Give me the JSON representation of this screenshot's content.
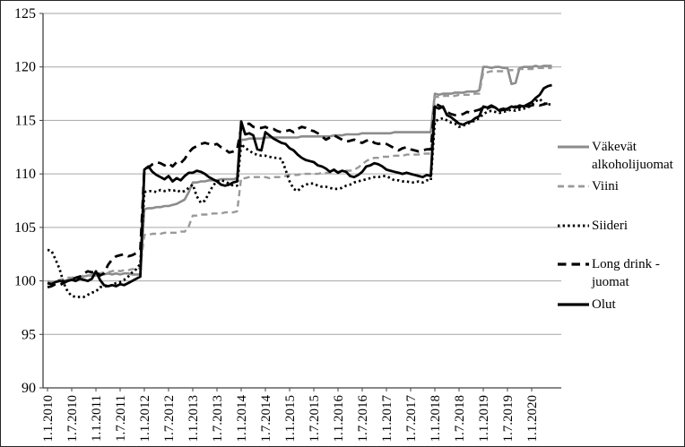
{
  "figure": {
    "background": "#ffffff",
    "border_color": "#262626"
  },
  "chart_data": {
    "type": "line",
    "title": "",
    "xlabel": "",
    "ylabel": "",
    "grid": true,
    "legend_position": "right",
    "ylim": [
      90,
      125
    ],
    "y_ticks": [
      90,
      95,
      100,
      105,
      110,
      115,
      120,
      125
    ],
    "x_start_month": "1.1.2010",
    "x_frequency": "monthly",
    "x_tick_every_months": 6,
    "x_tick_labels": [
      "1.1.2010",
      "1.7.2010",
      "1.1.2011",
      "1.7.2011",
      "1.1.2012",
      "1.7.2012",
      "1.1.2013",
      "1.7.2013",
      "1.1.2014",
      "1.7.2014",
      "1.1.2015",
      "1.7.2015",
      "1.1.2016",
      "1.7.2016",
      "1.1.2017",
      "1.7.2017",
      "1.1.2018",
      "1.7.2018",
      "1.1.2019",
      "1.7.2019",
      "1.1.2020"
    ],
    "axis_color": "#404040",
    "gridline_color": "#a6a6a6",
    "series": [
      {
        "key": "vakevat",
        "name": "Väkevät alkoholijuomat",
        "label_lines": [
          "Väkevät",
          "alkoholijuomat"
        ],
        "color": "#8c8c8c",
        "style": "solid",
        "width": 2.6,
        "values": [
          99.7,
          99.8,
          99.9,
          100,
          100,
          100.1,
          100.2,
          100.3,
          100.3,
          100.4,
          100.5,
          100.5,
          100.5,
          100.6,
          100.6,
          100.7,
          100.6,
          100.7,
          100.6,
          100.7,
          100.7,
          100.6,
          100.6,
          100.6,
          106.7,
          106.8,
          106.8,
          106.9,
          106.9,
          107,
          107,
          107.1,
          107.2,
          107.4,
          107.6,
          108.3,
          109.2,
          109.2,
          109.3,
          109.3,
          109.4,
          109.4,
          109.4,
          109.5,
          109.5,
          109.5,
          109.5,
          109.6,
          113.2,
          113.2,
          113.3,
          113.3,
          113.3,
          113.3,
          113.4,
          113.4,
          113.4,
          113.4,
          113.4,
          113.4,
          113.4,
          113.4,
          113.4,
          113.5,
          113.5,
          113.5,
          113.5,
          113.5,
          113.5,
          113.5,
          113.5,
          113.6,
          113.6,
          113.6,
          113.7,
          113.7,
          113.7,
          113.7,
          113.8,
          113.8,
          113.8,
          113.8,
          113.8,
          113.8,
          113.8,
          113.8,
          113.9,
          113.9,
          113.9,
          113.9,
          113.9,
          113.9,
          113.9,
          113.9,
          113.9,
          113.9,
          117.5,
          117.4,
          117.5,
          117.5,
          117.5,
          117.6,
          117.6,
          117.6,
          117.7,
          117.7,
          117.7,
          117.8,
          120,
          120,
          119.9,
          120,
          120,
          119.9,
          119.9,
          118.4,
          118.5,
          119.9,
          120,
          120,
          120,
          120.1,
          120,
          120.1,
          120.1,
          120.1
        ]
      },
      {
        "key": "viini",
        "name": "Viini",
        "label_lines": [
          "Viini"
        ],
        "color": "#999999",
        "style": "dash",
        "width": 2.4,
        "values": [
          100,
          99.9,
          100,
          100.1,
          100.2,
          100.3,
          100.3,
          100.4,
          100.4,
          100.5,
          100.5,
          100.6,
          100.7,
          100.7,
          100.8,
          100.8,
          100.9,
          101,
          100.9,
          101,
          101,
          101.1,
          101.1,
          101.2,
          104.3,
          104.3,
          104.4,
          104.4,
          104.4,
          104.5,
          104.5,
          104.5,
          104.5,
          104.6,
          104.6,
          105.1,
          106.1,
          106.1,
          106.2,
          106.2,
          106.2,
          106.3,
          106.3,
          106.3,
          106.4,
          106.4,
          106.4,
          106.5,
          109.6,
          109.6,
          109.7,
          109.7,
          109.7,
          109.7,
          109.7,
          109.6,
          109.7,
          109.7,
          109.7,
          109.8,
          109.9,
          109.9,
          109.9,
          110,
          110,
          110,
          110,
          110,
          110.1,
          110.1,
          110.1,
          110.2,
          110.2,
          110.3,
          110.3,
          110.3,
          110.4,
          110.6,
          110.9,
          111.2,
          111.4,
          111.5,
          111.5,
          111.6,
          111.6,
          111.6,
          111.7,
          111.7,
          111.7,
          111.8,
          111.8,
          111.8,
          111.8,
          111.9,
          111.9,
          111.9,
          117.2,
          117.2,
          117.3,
          117.3,
          117.3,
          117.3,
          117.4,
          117.4,
          117.4,
          117.4,
          117.5,
          117.5,
          119.5,
          119.5,
          119.6,
          119.6,
          119.6,
          119.6,
          119.7,
          119.7,
          119.7,
          119.8,
          119.8,
          119.8,
          119.8,
          119.9,
          119.9,
          119.9,
          119.9,
          119.9
        ]
      },
      {
        "key": "siideri",
        "name": "Siideri",
        "label_lines": [
          "Siideri"
        ],
        "color": "#000000",
        "style": "dot",
        "width": 2.7,
        "values": [
          102.9,
          102.8,
          102,
          101.1,
          99.8,
          99,
          98.6,
          98.5,
          98.5,
          98.5,
          98.7,
          98.9,
          99,
          99.4,
          99.5,
          99.5,
          99.6,
          99.8,
          99.9,
          100.1,
          100.4,
          100.8,
          101.1,
          101.6,
          108.3,
          108.4,
          108.4,
          108.3,
          108.5,
          108.4,
          108.5,
          108.4,
          108.5,
          108.3,
          108.4,
          108.7,
          109,
          107.9,
          107.3,
          107.5,
          108.2,
          108.9,
          109.3,
          109.4,
          109.3,
          109.1,
          108.9,
          108.9,
          112.8,
          112.4,
          112.2,
          111.9,
          111.8,
          111.7,
          111.7,
          111.6,
          111.5,
          111.5,
          111.4,
          110.4,
          109.3,
          108.6,
          108.4,
          108.8,
          109,
          109.1,
          109.1,
          108.9,
          108.8,
          108.8,
          108.7,
          108.6,
          108.6,
          108.7,
          108.9,
          109,
          109.2,
          109.3,
          109.4,
          109.5,
          109.6,
          109.7,
          109.7,
          109.8,
          109.8,
          109.6,
          109.4,
          109.4,
          109.3,
          109.3,
          109.2,
          109.2,
          109.3,
          109.2,
          109.4,
          109.4,
          114.9,
          115.1,
          115.2,
          115,
          114.8,
          114.7,
          114.4,
          114.5,
          114.7,
          114.8,
          115,
          115.2,
          115.6,
          115.8,
          115.9,
          115.8,
          115.7,
          115.8,
          115.9,
          116,
          115.9,
          116,
          116.1,
          116.2,
          116.4,
          116.8,
          117,
          116.6,
          116.5,
          116.5
        ]
      },
      {
        "key": "longdrink",
        "name": "Long drink -juomat",
        "label_lines": [
          "Long drink -",
          "juomat"
        ],
        "color": "#000000",
        "style": "longdash",
        "width": 2.8,
        "values": [
          99.4,
          99.5,
          99.7,
          99.6,
          99.8,
          100,
          100.1,
          100.3,
          100.4,
          100.7,
          100.9,
          100.8,
          100.9,
          100.5,
          100.7,
          101.5,
          102,
          102.3,
          102.4,
          102.5,
          102.3,
          102.4,
          102.6,
          102.9,
          110.5,
          110.6,
          110.9,
          111.1,
          111,
          110.8,
          111,
          110.7,
          111.1,
          111,
          111.4,
          112,
          112.4,
          112.6,
          112.8,
          112.9,
          112.8,
          112.7,
          112.8,
          112.5,
          112.3,
          112,
          112.1,
          112.3,
          114.3,
          114.6,
          114.7,
          114.4,
          114.3,
          114.3,
          114.4,
          114.2,
          114.2,
          114,
          113.9,
          114,
          114.1,
          113.9,
          114.2,
          114.4,
          114.3,
          114.1,
          114,
          113.8,
          113.5,
          113.2,
          113.4,
          113.6,
          113.4,
          113.2,
          113,
          113.1,
          113.2,
          113,
          112.9,
          113.1,
          113.2,
          112.9,
          112.8,
          112.9,
          112.8,
          112.6,
          112.4,
          112.2,
          112.4,
          112.5,
          112.3,
          112.2,
          112.1,
          112.2,
          112.3,
          112.3,
          116.6,
          116.4,
          116.2,
          115.8,
          115.6,
          115.5,
          115.5,
          115.6,
          115.8,
          115.7,
          115.9,
          116,
          116.2,
          116.1,
          116.3,
          116.2,
          116,
          116.1,
          116,
          116.2,
          116.3,
          116.2,
          116.4,
          116.3,
          116.4,
          116.5,
          116.4,
          116.5,
          116.6,
          116.5
        ]
      },
      {
        "key": "olut",
        "name": "Olut",
        "label_lines": [
          "Olut"
        ],
        "color": "#000000",
        "style": "solid",
        "width": 2.8,
        "values": [
          99.8,
          99.7,
          99.9,
          100,
          99.9,
          100,
          100.1,
          100,
          100.2,
          100.1,
          100,
          100.2,
          100.9,
          100.1,
          99.6,
          99.5,
          99.6,
          99.5,
          99.7,
          99.6,
          99.8,
          100,
          100.2,
          100.4,
          110.4,
          110.7,
          110.2,
          109.9,
          109.7,
          109.5,
          109.8,
          109.3,
          109.6,
          109.4,
          109.8,
          110.1,
          110.1,
          110.3,
          110.2,
          110,
          109.7,
          109.5,
          109.3,
          109,
          108.9,
          109,
          109.2,
          109.3,
          114.9,
          113.7,
          113.8,
          113.6,
          112.3,
          112.2,
          113.9,
          113.6,
          113.3,
          113.1,
          112.9,
          112.8,
          112.4,
          112.2,
          111.8,
          111.5,
          111.3,
          111.2,
          111.1,
          110.8,
          110.7,
          110.5,
          110.2,
          110.4,
          110.1,
          110.3,
          110.2,
          109.8,
          109.7,
          109.9,
          110.2,
          110.7,
          110.8,
          111,
          110.9,
          110.7,
          110.4,
          110.3,
          110.2,
          110.1,
          110,
          110.1,
          110,
          109.9,
          109.8,
          109.7,
          109.9,
          109.8,
          116.3,
          116.1,
          116.3,
          115.5,
          115.3,
          115,
          114.7,
          114.6,
          114.8,
          114.9,
          115.2,
          115.4,
          116.3,
          116.2,
          116.4,
          116.2,
          115.9,
          116,
          116.1,
          116.3,
          116.2,
          116.4,
          116.3,
          116.5,
          116.7,
          117.1,
          117.4,
          118,
          118.2,
          118.3
        ]
      }
    ]
  }
}
